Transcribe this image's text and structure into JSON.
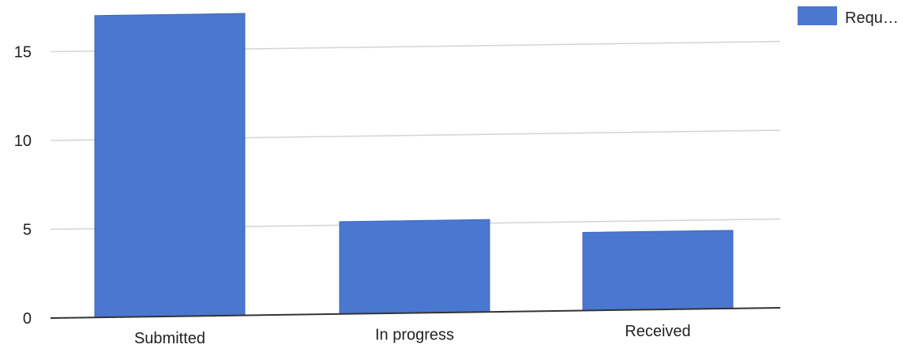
{
  "chart_data": {
    "type": "bar",
    "categories": [
      "Submitted",
      "In progress",
      "Received"
    ],
    "series": [
      {
        "name": "Requ…",
        "values": [
          17,
          5.2,
          4.4
        ],
        "color": "#4a77d0"
      }
    ],
    "yticks": [
      "0",
      "5",
      "10",
      "15"
    ],
    "ylim": [
      0,
      18
    ],
    "grid": true,
    "legend": "top-right"
  }
}
